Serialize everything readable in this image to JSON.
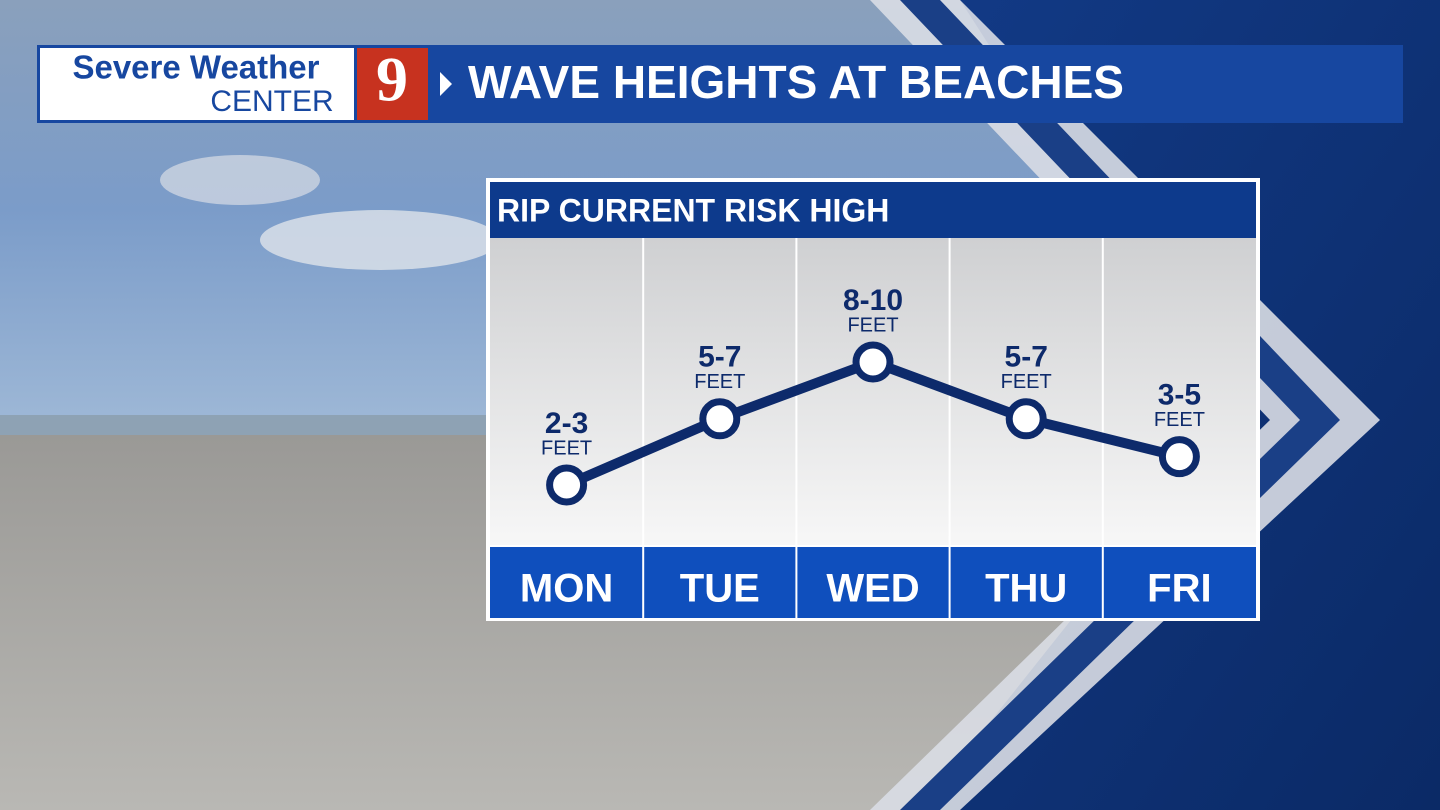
{
  "header": {
    "brand": "Severe Weather",
    "brand_sub": "CENTER",
    "channel": "9"
  },
  "chart_data": {
    "type": "line",
    "title": "WAVE HEIGHTS AT BEACHES",
    "subtitle": "RIP CURRENT RISK HIGH",
    "categories": [
      "MON",
      "TUE",
      "WED",
      "THU",
      "FRI"
    ],
    "values": [
      [
        2,
        3
      ],
      [
        5,
        7
      ],
      [
        8,
        10
      ],
      [
        5,
        7
      ],
      [
        3,
        5
      ]
    ],
    "value_labels": [
      "2-3",
      "5-7",
      "8-10",
      "5-7",
      "3-5"
    ],
    "unit": "FEET",
    "color": "#0d2a6b"
  }
}
